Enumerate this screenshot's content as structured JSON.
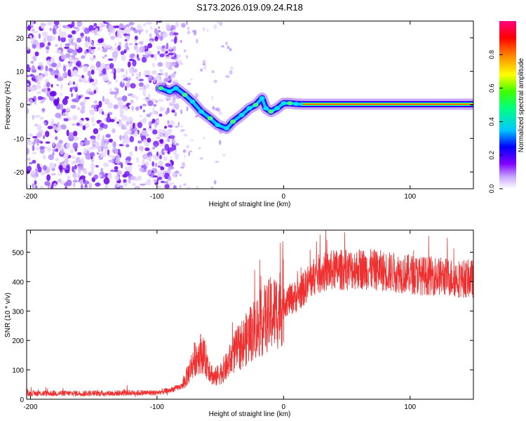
{
  "figure_title": "S173.2026.019.09.24.R18",
  "chart_data": [
    {
      "type": "heatmap",
      "title": "S173.2026.019.09.24.R18",
      "xlabel": "Height of straight line (km)",
      "ylabel": "Frequency (Hz)",
      "xlim": [
        -203,
        150
      ],
      "ylim": [
        -25,
        25
      ],
      "xticks": [
        -200,
        -100,
        0,
        100
      ],
      "yticks": [
        -20,
        -10,
        0,
        10,
        20
      ],
      "colorbar": {
        "label": "Normalized spectral amplitude",
        "range": [
          0,
          1
        ],
        "ticks": [
          0.0,
          0.2,
          0.4,
          0.6,
          0.8
        ],
        "colors": [
          "#ffffff",
          "#c8a8ff",
          "#8000ff",
          "#0000ff",
          "#00c8ff",
          "#00ff80",
          "#40ff00",
          "#ffff00",
          "#ff8000",
          "#ff0000",
          "#ff0080"
        ]
      },
      "features": [
        {
          "name": "noise_region",
          "x_range": [
            -203,
            -90
          ],
          "freq_range": [
            -25,
            25
          ],
          "amplitude": 0.08
        },
        {
          "name": "ridge",
          "points": [
            [
              -97,
              5
            ],
            [
              -90,
              4
            ],
            [
              -85,
              5
            ],
            [
              -78,
              3
            ],
            [
              -72,
              1
            ],
            [
              -65,
              -2
            ],
            [
              -58,
              -4
            ],
            [
              -52,
              -6
            ],
            [
              -45,
              -7
            ],
            [
              -40,
              -5
            ],
            [
              -33,
              -3
            ],
            [
              -27,
              -1
            ],
            [
              -22,
              0
            ],
            [
              -17,
              2
            ],
            [
              -14,
              -1
            ],
            [
              -10,
              -2
            ],
            [
              -5,
              -1
            ],
            [
              0,
              0.5
            ],
            [
              5,
              0.5
            ],
            [
              10,
              0.3
            ],
            [
              15,
              0.2
            ],
            [
              150,
              0.2
            ]
          ]
        },
        {
          "name": "constant_line",
          "x_range": [
            15,
            150
          ],
          "freq": 0.2,
          "amplitude": 0.85
        }
      ]
    },
    {
      "type": "line",
      "xlabel": "Height of straight line (km)",
      "ylabel": "SNR (10 * v/v)",
      "xlim": [
        -203,
        150
      ],
      "ylim": [
        0,
        575
      ],
      "xticks": [
        -200,
        -100,
        0,
        100
      ],
      "yticks": [
        0,
        100,
        200,
        300,
        400,
        500
      ],
      "series": [
        {
          "name": "SNR",
          "color": "#f03030",
          "x": [
            -203,
            -180,
            -160,
            -140,
            -120,
            -100,
            -90,
            -80,
            -75,
            -70,
            -65,
            -60,
            -55,
            -50,
            -45,
            -40,
            -35,
            -30,
            -25,
            -20,
            -15,
            -10,
            -5,
            0,
            5,
            10,
            15,
            20,
            25,
            30,
            40,
            50,
            60,
            70,
            80,
            90,
            100,
            110,
            120,
            130,
            140,
            150
          ],
          "values": [
            20,
            20,
            20,
            20,
            22,
            22,
            30,
            45,
            90,
            140,
            160,
            120,
            70,
            90,
            110,
            150,
            180,
            200,
            230,
            250,
            270,
            290,
            300,
            330,
            340,
            350,
            370,
            400,
            420,
            430,
            440,
            440,
            445,
            440,
            435,
            430,
            425,
            420,
            420,
            415,
            410,
            410
          ]
        }
      ]
    }
  ]
}
